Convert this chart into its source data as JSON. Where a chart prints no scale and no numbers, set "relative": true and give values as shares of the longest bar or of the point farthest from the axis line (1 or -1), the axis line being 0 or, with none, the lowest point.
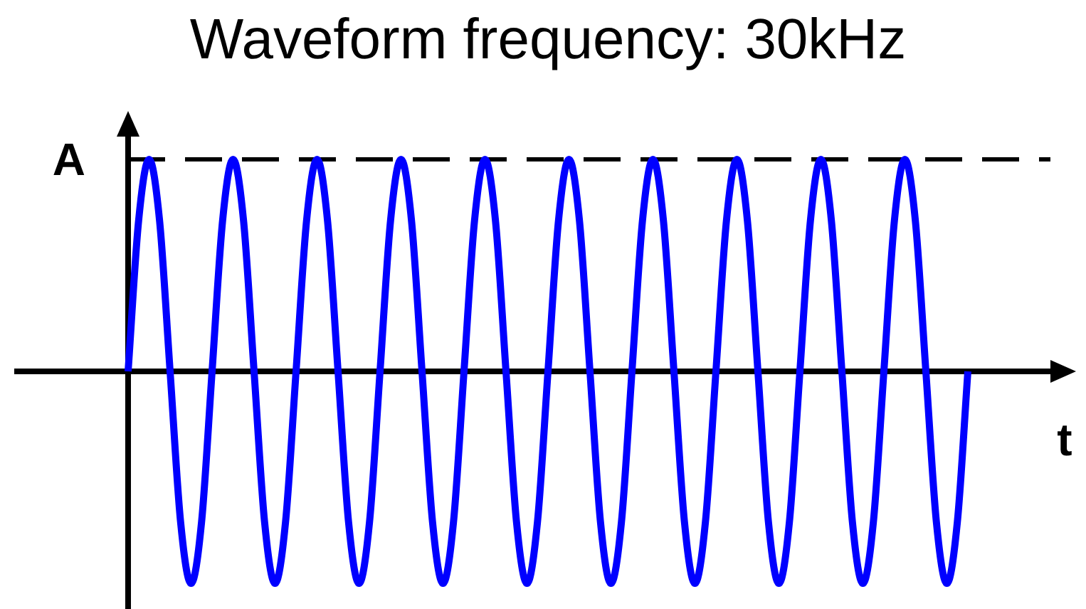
{
  "chart_data": {
    "type": "line",
    "title": "Waveform frequency: 30kHz",
    "xlabel": "t",
    "relative": true,
    "legend": false,
    "marker": "none",
    "line_style": "solid",
    "categories": [
      null,
      null,
      null,
      null,
      null,
      null,
      null,
      null,
      null,
      null,
      null,
      null,
      null,
      null,
      null,
      null,
      null,
      null,
      null,
      null,
      null,
      null,
      null,
      null,
      null,
      null,
      null,
      null,
      null,
      null,
      null,
      null,
      null,
      null,
      null,
      null,
      null,
      null,
      null,
      null,
      null,
      null,
      null,
      null,
      null,
      null,
      null,
      null,
      null,
      null,
      null,
      null,
      null,
      null,
      null,
      null,
      null,
      null,
      null,
      null,
      null,
      null,
      null,
      null,
      null,
      null,
      null,
      null,
      null,
      null,
      null,
      null,
      null,
      null,
      null,
      null,
      null,
      null,
      null,
      null,
      null
    ],
    "series": [
      {
        "color": "#0000ff",
        "values": [
          0,
          0.71,
          1,
          0.71,
          0,
          -0.71,
          -1,
          -0.71,
          0,
          0.71,
          1,
          0.71,
          0,
          -0.71,
          -1,
          -0.71,
          0,
          0.71,
          1,
          0.71,
          0,
          -0.71,
          -1,
          -0.71,
          0,
          0.71,
          1,
          0.71,
          0,
          -0.71,
          -1,
          -0.71,
          0,
          0.71,
          1,
          0.71,
          0,
          -0.71,
          -1,
          -0.71,
          0,
          0.71,
          1,
          0.71,
          0,
          -0.71,
          -1,
          -0.71,
          0,
          0.71,
          1,
          0.71,
          0,
          -0.71,
          -1,
          -0.71,
          0,
          0.71,
          1,
          0.71,
          0,
          -0.71,
          -1,
          -0.71,
          0,
          0.71,
          1,
          0.71,
          0,
          -0.71,
          -1,
          -0.71,
          0,
          0.71,
          1,
          0.71,
          0,
          -0.71,
          -1,
          -0.71,
          0
        ]
      }
    ],
    "ref_lines": [
      {
        "axis": "y",
        "value": 1,
        "label": "A",
        "line_style": "dashed",
        "color": "#000000"
      }
    ]
  }
}
